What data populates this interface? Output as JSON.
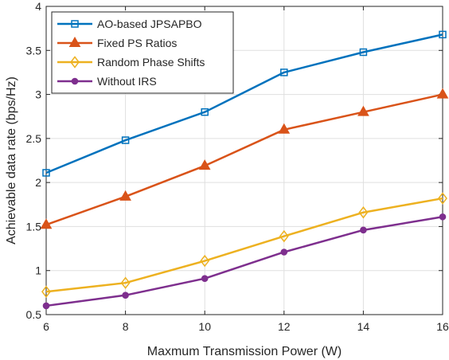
{
  "chart_data": {
    "type": "line",
    "xlabel": "Maxmum Transmission Power (W)",
    "ylabel": "Achievable data rate (bps/Hz)",
    "xlim": [
      6,
      16
    ],
    "ylim": [
      0.5,
      4
    ],
    "xticks": [
      6,
      8,
      10,
      12,
      14,
      16
    ],
    "yticks": [
      0.5,
      1,
      1.5,
      2,
      2.5,
      3,
      3.5,
      4
    ],
    "xtick_labels": [
      "6",
      "8",
      "10",
      "12",
      "14",
      "16"
    ],
    "ytick_labels": [
      "0.5",
      "1",
      "1.5",
      "2",
      "2.5",
      "3",
      "3.5",
      "4"
    ],
    "grid": true,
    "legend_position": "top-left",
    "x": [
      6,
      8,
      10,
      12,
      14,
      16
    ],
    "series": [
      {
        "name": "AO-based JPSAPBO",
        "values": [
          2.11,
          2.48,
          2.8,
          3.25,
          3.48,
          3.68
        ],
        "color": "#0072BD",
        "marker": "square"
      },
      {
        "name": "Fixed PS Ratios",
        "values": [
          1.52,
          1.84,
          2.19,
          2.6,
          2.8,
          3.0
        ],
        "color": "#D95319",
        "marker": "triangle"
      },
      {
        "name": "Random Phase Shifts",
        "values": [
          0.76,
          0.86,
          1.11,
          1.39,
          1.66,
          1.82
        ],
        "color": "#EDB120",
        "marker": "diamond"
      },
      {
        "name": "Without IRS",
        "values": [
          0.6,
          0.72,
          0.91,
          1.21,
          1.46,
          1.61
        ],
        "color": "#7E2F8E",
        "marker": "circle"
      }
    ]
  }
}
